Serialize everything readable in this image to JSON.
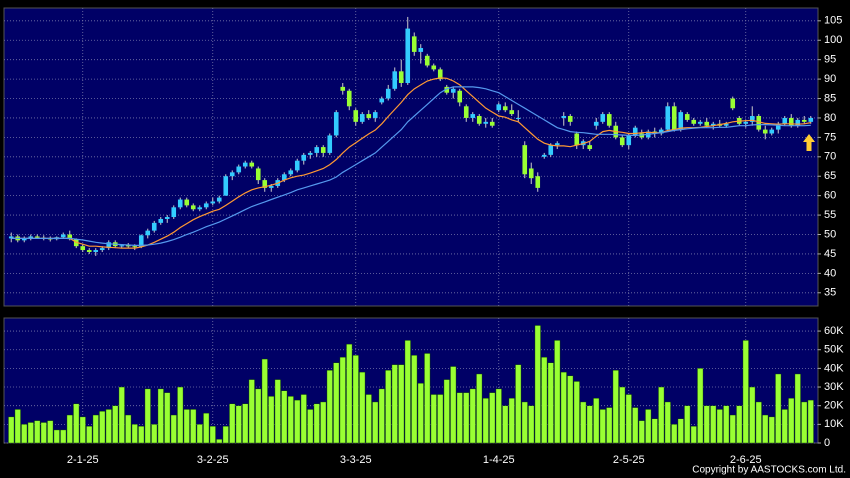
{
  "chart_data": {
    "type": "candlestick",
    "categories": [
      null,
      null,
      null,
      null,
      null,
      null,
      null,
      null,
      null,
      null,
      null,
      "2-1-25",
      null,
      null,
      null,
      null,
      null,
      null,
      null,
      null,
      null,
      null,
      null,
      null,
      null,
      null,
      null,
      null,
      null,
      null,
      null,
      "3-2-25",
      null,
      null,
      null,
      null,
      null,
      null,
      null,
      null,
      null,
      null,
      null,
      null,
      null,
      null,
      null,
      null,
      null,
      null,
      null,
      null,
      null,
      "3-3-25",
      null,
      null,
      null,
      null,
      null,
      null,
      null,
      null,
      null,
      null,
      null,
      null,
      null,
      null,
      null,
      null,
      null,
      null,
      null,
      null,
      null,
      "1-4-25",
      null,
      null,
      null,
      null,
      null,
      null,
      null,
      null,
      null,
      null,
      null,
      null,
      null,
      null,
      null,
      null,
      null,
      null,
      null,
      "2-5-25",
      null,
      null,
      null,
      null,
      null,
      null,
      null,
      null,
      null,
      null,
      null,
      null,
      null,
      null,
      null,
      null,
      null,
      "2-6-25",
      null,
      null,
      null,
      null,
      null,
      null,
      null,
      null,
      null,
      null
    ],
    "ohlc": [
      [
        49,
        50.5,
        48,
        49.5
      ],
      [
        49.5,
        50,
        48,
        48.5
      ],
      [
        48.5,
        49.5,
        48,
        49
      ],
      [
        49,
        50,
        48.5,
        49.5
      ],
      [
        49.5,
        50,
        49,
        49.2
      ],
      [
        49.2,
        49.8,
        48.5,
        49
      ],
      [
        49,
        49.5,
        48.2,
        48.8
      ],
      [
        48.8,
        49.5,
        48.5,
        49.3
      ],
      [
        49.3,
        50.5,
        49,
        50
      ],
      [
        50,
        51,
        48.5,
        48.8
      ],
      [
        48.8,
        49,
        46.5,
        47
      ],
      [
        47,
        47.5,
        45.5,
        46
      ],
      [
        46,
        46.5,
        45,
        45.5
      ],
      [
        45.5,
        46.5,
        44.5,
        46
      ],
      [
        46,
        47,
        45.5,
        46.5
      ],
      [
        46.5,
        48.5,
        46,
        48
      ],
      [
        48,
        48.5,
        46.5,
        47
      ],
      [
        47,
        47.5,
        46.5,
        47.2
      ],
      [
        47.2,
        47.8,
        46.5,
        47
      ],
      [
        47,
        47.5,
        46,
        46.8
      ],
      [
        46.8,
        50,
        46.5,
        49.8
      ],
      [
        49.8,
        51.5,
        49,
        51
      ],
      [
        51,
        53.5,
        50.5,
        53
      ],
      [
        53,
        54.5,
        52.5,
        54
      ],
      [
        54,
        55,
        53,
        54.5
      ],
      [
        54.5,
        57.5,
        54,
        57
      ],
      [
        57,
        59.5,
        56.5,
        59
      ],
      [
        59,
        59.5,
        57,
        57.5
      ],
      [
        57.5,
        58,
        56,
        56.5
      ],
      [
        56.5,
        57.5,
        56,
        57
      ],
      [
        57,
        58.5,
        56.5,
        58
      ],
      [
        58,
        59.5,
        57.5,
        58.5
      ],
      [
        58.5,
        60,
        58,
        59.5
      ],
      [
        60,
        65.5,
        60,
        65
      ],
      [
        65,
        66.5,
        64,
        66
      ],
      [
        66,
        68,
        65.5,
        67.5
      ],
      [
        67.5,
        69,
        67,
        68.5
      ],
      [
        68.5,
        69,
        67,
        67.5
      ],
      [
        67,
        67.5,
        63,
        64
      ],
      [
        64,
        64.5,
        61,
        62
      ],
      [
        62,
        63,
        61,
        62.5
      ],
      [
        62.5,
        64.5,
        62,
        64
      ],
      [
        64,
        66,
        63.5,
        65.5
      ],
      [
        65.5,
        67,
        65,
        66.5
      ],
      [
        66.5,
        69.5,
        66,
        69
      ],
      [
        69,
        71,
        68,
        70.5
      ],
      [
        70.5,
        71.5,
        69.5,
        71
      ],
      [
        71,
        73,
        70,
        72.5
      ],
      [
        72.5,
        73,
        70,
        71
      ],
      [
        71,
        76,
        70.5,
        75.5
      ],
      [
        75.5,
        82,
        75,
        81.5
      ],
      [
        88,
        89,
        86,
        87
      ],
      [
        87,
        87.5,
        82,
        83
      ],
      [
        82,
        82.5,
        78,
        79
      ],
      [
        79,
        81.5,
        78.5,
        81
      ],
      [
        81,
        82,
        79.5,
        80
      ],
      [
        80,
        82,
        79,
        81.5
      ],
      [
        84,
        85.5,
        83.5,
        85
      ],
      [
        85,
        88.5,
        84.5,
        87.5
      ],
      [
        87.5,
        93,
        87,
        92
      ],
      [
        92,
        95,
        88,
        89
      ],
      [
        89,
        106,
        88.5,
        103
      ],
      [
        101,
        102,
        96,
        97
      ],
      [
        97,
        99,
        94,
        98
      ],
      [
        96,
        96.5,
        93,
        93.5
      ],
      [
        93.5,
        94,
        92,
        92.5
      ],
      [
        92.5,
        93,
        89.5,
        90
      ],
      [
        88,
        88.5,
        86,
        86.5
      ],
      [
        86.5,
        88,
        85,
        87.5
      ],
      [
        87,
        87.5,
        83,
        84
      ],
      [
        83,
        83.5,
        79,
        80
      ],
      [
        80,
        81.5,
        79,
        81
      ],
      [
        80.5,
        81,
        78,
        78.5
      ],
      [
        78.5,
        80,
        77.5,
        79
      ],
      [
        79,
        80,
        77.5,
        78
      ],
      [
        82,
        84,
        81.5,
        83.5
      ],
      [
        83,
        84,
        81.5,
        82
      ],
      [
        82,
        83.5,
        80.5,
        81
      ],
      [
        80,
        82,
        79,
        80
      ],
      [
        73,
        74,
        64.5,
        65.5
      ],
      [
        67,
        68.5,
        63,
        64.5
      ],
      [
        65,
        66,
        61,
        62
      ],
      [
        70,
        71,
        69.5,
        70.5
      ],
      [
        70.5,
        73.5,
        70,
        73
      ],
      [
        73,
        74,
        72,
        73.5
      ],
      [
        80,
        81.5,
        78,
        80.5
      ],
      [
        80.5,
        81,
        78,
        79
      ],
      [
        76,
        76.5,
        72,
        73
      ],
      [
        73,
        74.5,
        72,
        74
      ],
      [
        73,
        74,
        71.5,
        72
      ],
      [
        78,
        80,
        77,
        79
      ],
      [
        79,
        81.5,
        78.5,
        81
      ],
      [
        81,
        81.5,
        77.5,
        78
      ],
      [
        78,
        79,
        74.5,
        75
      ],
      [
        75,
        75.5,
        72.5,
        73
      ],
      [
        73,
        76,
        72,
        75.5
      ],
      [
        75.5,
        78,
        75,
        77.5
      ],
      [
        76,
        77,
        74.5,
        75
      ],
      [
        75,
        77,
        74.5,
        76.5
      ],
      [
        76.5,
        77.5,
        75,
        76
      ],
      [
        76,
        77.5,
        75.5,
        77
      ],
      [
        77,
        84,
        76.5,
        83
      ],
      [
        83,
        84,
        76.5,
        77
      ],
      [
        77,
        82,
        76.5,
        81.5
      ],
      [
        81,
        81.5,
        79,
        79.5
      ],
      [
        79.5,
        80,
        78,
        78.5
      ],
      [
        78.5,
        79.5,
        78,
        79
      ],
      [
        79,
        80,
        77.5,
        78
      ],
      [
        78,
        79,
        77,
        78.5
      ],
      [
        78.5,
        79.5,
        77.5,
        78
      ],
      [
        78,
        79,
        77.5,
        78.5
      ],
      [
        85,
        85.5,
        82,
        82.5
      ],
      [
        80,
        80.5,
        78,
        78.5
      ],
      [
        78.5,
        79.5,
        77.5,
        79
      ],
      [
        79,
        83,
        78,
        80.5
      ],
      [
        80.5,
        81,
        76.5,
        77
      ],
      [
        77,
        78,
        74.5,
        76
      ],
      [
        76,
        77.5,
        75.5,
        77
      ],
      [
        77,
        79,
        76,
        78.5
      ],
      [
        78.5,
        80.5,
        78,
        80
      ],
      [
        80,
        81,
        77.5,
        78
      ],
      [
        78,
        80,
        77.5,
        79.5
      ],
      [
        79.5,
        80.5,
        78.5,
        79
      ],
      [
        79,
        80.5,
        78.5,
        80
      ]
    ],
    "up_color": "#33ccff",
    "down_color": "#99ff33",
    "wick_color": "#cccccc",
    "series": [
      {
        "color": "#ff9933",
        "values": [
          49,
          49,
          49,
          49,
          49,
          49,
          49,
          49,
          49,
          49,
          48,
          47.5,
          47,
          47,
          46.8,
          46.7,
          46.6,
          46.5,
          46.5,
          46.5,
          46.8,
          47.3,
          48,
          48.8,
          49.6,
          50.6,
          51.8,
          52.8,
          53.8,
          54.6,
          55.3,
          56,
          56.5,
          57.5,
          58.6,
          59.7,
          60.7,
          61.5,
          62,
          62.3,
          62.7,
          63.2,
          64,
          64.6,
          65,
          65.3,
          65.8,
          66.4,
          67,
          68,
          69.3,
          71,
          72.5,
          73.6,
          74.8,
          75.9,
          76.9,
          78.5,
          80.4,
          82.2,
          84,
          86,
          87.5,
          88.5,
          89.5,
          90,
          90.3,
          90.2,
          89.5,
          88.5,
          87,
          85.5,
          84,
          82.5,
          81.5,
          80.5,
          80.2,
          79.5,
          79,
          77.5,
          76,
          74.5,
          73.5,
          73,
          72.8,
          72.8,
          72.6,
          73,
          73.4,
          74,
          75.3,
          76.5,
          76.8,
          76.5,
          76.3,
          76,
          76,
          76.2,
          76.3,
          76.2,
          76.2,
          76.8,
          77,
          77.4,
          77.5,
          77.5,
          77.6,
          77.8,
          78,
          78.3,
          78.6,
          79,
          79.2,
          79.3,
          79.4,
          79,
          78.6,
          78.5,
          78.4,
          78.5,
          78.5,
          78.4,
          78.5,
          78.8
        ]
      },
      {
        "color": "#5599ee",
        "values": [
          49,
          49,
          49,
          49,
          49,
          49,
          49,
          49,
          49,
          49,
          48.8,
          48.6,
          48.3,
          48,
          47.8,
          47.6,
          47.5,
          47.4,
          47.3,
          47.2,
          47.2,
          47.3,
          47.5,
          47.8,
          48.2,
          48.7,
          49.3,
          50,
          50.6,
          51.3,
          52,
          52.6,
          53.2,
          54,
          54.8,
          55.6,
          56.4,
          57.2,
          57.8,
          58.4,
          59,
          59.6,
          60.2,
          60.8,
          61.5,
          62,
          62.5,
          63,
          63.5,
          64,
          64.8,
          66,
          67,
          68,
          69,
          70,
          71,
          72.5,
          74,
          75.5,
          77,
          79,
          80.5,
          82,
          83.5,
          85,
          86.5,
          87.5,
          88,
          88,
          88,
          88,
          87.8,
          87.5,
          87,
          86.5,
          85.5,
          84.5,
          83.5,
          82.5,
          81.5,
          80.5,
          79.5,
          78.5,
          77.5,
          77,
          76.5,
          76.3,
          76.2,
          76,
          75.8,
          75.8,
          75.8,
          75.7,
          75.6,
          75.5,
          75.5,
          75.6,
          75.8,
          76,
          76.2,
          76.5,
          76.8,
          77,
          77.2,
          77.4,
          77.5,
          77.5,
          77.5,
          77.6,
          77.6,
          77.8,
          78,
          78,
          78.2,
          78.3,
          78.3,
          78.2,
          78.1,
          78,
          78,
          78,
          78,
          78.1
        ]
      }
    ],
    "ylim": [
      31.6,
      108.3
    ],
    "yticks": [
      35,
      40,
      45,
      50,
      55,
      60,
      65,
      70,
      75,
      80,
      85,
      90,
      95,
      100,
      105
    ],
    "grid": true,
    "volume": {
      "color": "#99ff33",
      "values": [
        14000,
        18000,
        10000,
        11000,
        12000,
        11000,
        12000,
        7000,
        7000,
        15000,
        21000,
        14000,
        9000,
        15000,
        17000,
        18000,
        20000,
        30000,
        15000,
        10000,
        9000,
        29000,
        10000,
        29000,
        27000,
        15000,
        30000,
        18000,
        18000,
        10000,
        16000,
        9000,
        2000,
        9000,
        21000,
        20000,
        21000,
        34000,
        29000,
        45000,
        25000,
        34000,
        28000,
        25000,
        23000,
        26000,
        18000,
        21000,
        22000,
        39000,
        43000,
        46000,
        53000,
        47000,
        38000,
        26000,
        22000,
        29000,
        39000,
        42000,
        42000,
        55000,
        47000,
        32000,
        48000,
        26000,
        26000,
        34000,
        41000,
        27000,
        27000,
        29000,
        37000,
        24000,
        27000,
        29000,
        20000,
        24000,
        42000,
        22000,
        20000,
        63000,
        46000,
        43000,
        55000,
        38000,
        36000,
        33000,
        22000,
        20000,
        24000,
        18000,
        19000,
        39000,
        30000,
        26000,
        19000,
        12000,
        18000,
        13000,
        30000,
        22000,
        10000,
        13000,
        20000,
        9000,
        40000,
        20000,
        20000,
        18000,
        20000,
        15000,
        20000,
        55000,
        30000,
        22000,
        15000,
        14000,
        37000,
        18000,
        24000,
        37000,
        22000,
        23000
      ],
      "ylim": [
        0,
        67000
      ],
      "yticks": [
        {
          "value": 0,
          "label": "0"
        },
        {
          "value": 10000,
          "label": "10K"
        },
        {
          "value": 20000,
          "label": "20K"
        },
        {
          "value": 30000,
          "label": "30K"
        },
        {
          "value": 40000,
          "label": "40K"
        },
        {
          "value": 50000,
          "label": "50K"
        },
        {
          "value": 60000,
          "label": "60K"
        }
      ]
    },
    "credit": "Copyright by AASTOCKS.com Ltd."
  }
}
